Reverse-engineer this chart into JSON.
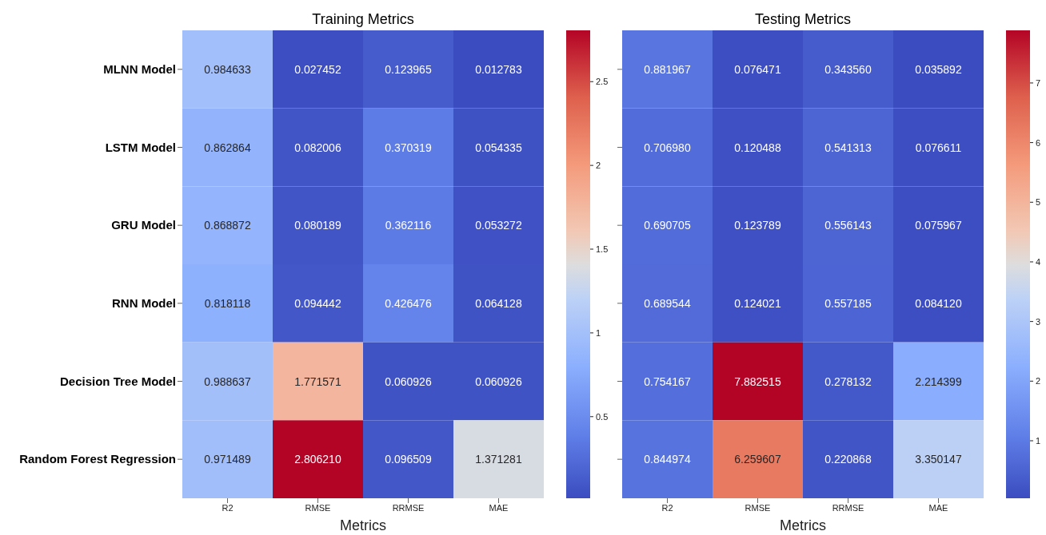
{
  "chart_data": [
    {
      "type": "heatmap",
      "title": "Training Metrics",
      "xlabel": "Metrics",
      "categories": [
        "R2",
        "RMSE",
        "RRMSE",
        "MAE"
      ],
      "y_categories": [
        "MLNN Model",
        "LSTM Model",
        "GRU Model",
        "RNN Model",
        "Decision Tree Model",
        "Random Forest Regression"
      ],
      "cells": [
        [
          0.984633,
          0.027452,
          0.123965,
          0.012783
        ],
        [
          0.862864,
          0.082006,
          0.370319,
          0.054335
        ],
        [
          0.868872,
          0.080189,
          0.362116,
          0.053272
        ],
        [
          0.818118,
          0.094442,
          0.426476,
          0.064128
        ],
        [
          0.988637,
          1.771571,
          0.060926,
          0.060926
        ],
        [
          0.971489,
          2.80621,
          0.096509,
          1.371281
        ]
      ],
      "cell_labels": [
        [
          "0.984633",
          "0.027452",
          "0.123965",
          "0.012783"
        ],
        [
          "0.862864",
          "0.082006",
          "0.370319",
          "0.054335"
        ],
        [
          "0.868872",
          "0.080189",
          "0.362116",
          "0.053272"
        ],
        [
          "0.818118",
          "0.094442",
          "0.426476",
          "0.064128"
        ],
        [
          "0.988637",
          "1.771571",
          "0.060926",
          "0.060926"
        ],
        [
          "0.971489",
          "2.806210",
          "0.096509",
          "1.371281"
        ]
      ],
      "clim": [
        0.012783,
        2.80621
      ],
      "cticks": [
        0.5,
        1.0,
        1.5,
        2.0,
        2.5
      ]
    },
    {
      "type": "heatmap",
      "title": "Testing Metrics",
      "xlabel": "Metrics",
      "categories": [
        "R2",
        "RMSE",
        "RRMSE",
        "MAE"
      ],
      "y_categories": [
        null,
        null,
        null,
        null,
        null,
        null
      ],
      "tick_labels": "x",
      "cells": [
        [
          0.881967,
          0.076471,
          0.34356,
          0.035892
        ],
        [
          0.70698,
          0.120488,
          0.541313,
          0.076611
        ],
        [
          0.690705,
          0.123789,
          0.556143,
          0.075967
        ],
        [
          0.689544,
          0.124021,
          0.557185,
          0.08412
        ],
        [
          0.754167,
          7.882515,
          0.278132,
          2.214399
        ],
        [
          0.844974,
          6.259607,
          0.220868,
          3.350147
        ]
      ],
      "cell_labels": [
        [
          "0.881967",
          "0.076471",
          "0.343560",
          "0.035892"
        ],
        [
          "0.706980",
          "0.120488",
          "0.541313",
          "0.076611"
        ],
        [
          "0.690705",
          "0.123789",
          "0.556143",
          "0.075967"
        ],
        [
          "0.689544",
          "0.124021",
          "0.557185",
          "0.084120"
        ],
        [
          "0.754167",
          "7.882515",
          "0.278132",
          "2.214399"
        ],
        [
          "0.844974",
          "6.259607",
          "0.220868",
          "3.350147"
        ]
      ],
      "clim": [
        0.035892,
        7.882515
      ],
      "cticks": [
        1,
        2,
        3,
        4,
        5,
        6,
        7
      ]
    }
  ]
}
